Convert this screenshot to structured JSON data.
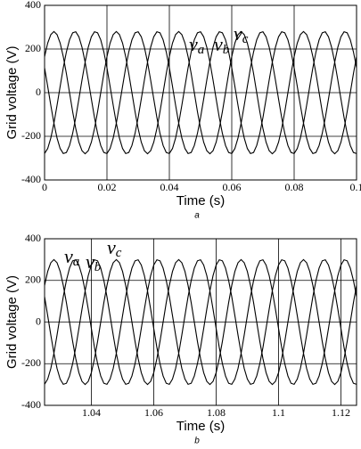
{
  "chart_data": [
    {
      "type": "line",
      "subtitle": "a",
      "x_label": "Time (s)",
      "y_label": "Grid voltage (V)",
      "x": [
        0,
        0.001,
        0.002,
        0.003,
        0.004,
        0.005,
        0.006,
        0.007,
        0.008,
        0.009,
        0.01,
        0.011,
        0.012,
        0.013,
        0.014,
        0.015,
        0.016,
        0.017,
        0.018,
        0.019,
        0.02,
        0.021,
        0.022,
        0.023,
        0.024,
        0.025,
        0.026,
        0.027,
        0.028,
        0.029,
        0.03,
        0.031,
        0.032,
        0.033,
        0.034,
        0.035,
        0.036,
        0.037,
        0.038,
        0.039,
        0.04,
        0.041,
        0.042,
        0.043,
        0.044,
        0.045,
        0.046,
        0.047,
        0.048,
        0.049,
        0.05,
        0.051,
        0.052,
        0.053,
        0.054,
        0.055,
        0.056,
        0.057,
        0.058,
        0.059,
        0.06,
        0.061,
        0.062,
        0.063,
        0.064,
        0.065,
        0.066,
        0.067,
        0.068,
        0.069,
        0.07,
        0.071,
        0.072,
        0.073,
        0.074,
        0.075,
        0.076,
        0.077,
        0.078,
        0.079,
        0.08,
        0.081,
        0.082,
        0.083,
        0.084,
        0.085,
        0.086,
        0.087,
        0.088,
        0.089,
        0.09,
        0.091,
        0.092,
        0.093,
        0.094,
        0.095,
        0.096,
        0.097,
        0.098,
        0.099,
        0.1
      ],
      "series": [
        {
          "name": "va",
          "color": "#000000",
          "values": [
            165,
            227,
            266,
            280,
            266,
            227,
            165,
            87,
            0,
            -87,
            -165,
            -227,
            -266,
            -280,
            -266,
            -227,
            -165,
            -87,
            0,
            87,
            165,
            227,
            266,
            280,
            266,
            227,
            165,
            87,
            0,
            -87,
            -165,
            -227,
            -266,
            -280,
            -266,
            -227,
            -165,
            -87,
            0,
            87,
            165,
            227,
            266,
            280,
            266,
            227,
            165,
            87,
            0,
            -87,
            -165,
            -227,
            -266,
            -280,
            -266,
            -227,
            -165,
            -87,
            0,
            87,
            165,
            227,
            266,
            280,
            266,
            227,
            165,
            87,
            0,
            -87,
            -165,
            -227,
            -266,
            -280,
            -266,
            -227,
            -165,
            -87,
            0,
            87,
            165,
            227,
            266,
            280,
            266,
            227,
            165,
            87,
            0,
            -87,
            -165,
            -227,
            -266,
            -280,
            -266,
            -227,
            -165,
            -87,
            0,
            87,
            165
          ]
        },
        {
          "name": "vb",
          "color": "#000000",
          "values": [
            -279,
            -256,
            -208,
            -140,
            -58,
            29,
            114,
            187,
            242,
            274,
            279,
            256,
            208,
            140,
            58,
            -29,
            -114,
            -187,
            -242,
            -274,
            -279,
            -256,
            -208,
            -140,
            -58,
            29,
            114,
            187,
            242,
            274,
            279,
            256,
            208,
            140,
            58,
            -29,
            -114,
            -187,
            -242,
            -274,
            -279,
            -256,
            -208,
            -140,
            -58,
            29,
            114,
            187,
            242,
            274,
            279,
            256,
            208,
            140,
            58,
            -29,
            -114,
            -187,
            -242,
            -274,
            -279,
            -256,
            -208,
            -140,
            -58,
            29,
            114,
            187,
            242,
            274,
            279,
            256,
            208,
            140,
            58,
            -29,
            -114,
            -187,
            -242,
            -274,
            -279,
            -256,
            -208,
            -140,
            -58,
            29,
            114,
            187,
            242,
            274,
            279,
            256,
            208,
            140,
            58,
            -29,
            -114,
            -187,
            -242,
            -274,
            -279
          ]
        },
        {
          "name": "vc",
          "color": "#000000",
          "values": [
            114,
            29,
            -58,
            -140,
            -208,
            -256,
            -279,
            -274,
            -242,
            -187,
            -114,
            -29,
            58,
            140,
            208,
            256,
            279,
            274,
            242,
            187,
            114,
            29,
            -58,
            -140,
            -208,
            -256,
            -279,
            -274,
            -242,
            -187,
            -114,
            -29,
            58,
            140,
            208,
            256,
            279,
            274,
            242,
            187,
            114,
            29,
            -58,
            -140,
            -208,
            -256,
            -279,
            -274,
            -242,
            -187,
            -114,
            -29,
            58,
            140,
            208,
            256,
            279,
            274,
            242,
            187,
            114,
            29,
            -58,
            -140,
            -208,
            -256,
            -279,
            -274,
            -242,
            -187,
            -114,
            -29,
            58,
            140,
            208,
            256,
            279,
            274,
            242,
            187,
            114,
            29,
            -58,
            -140,
            -208,
            -256,
            -279,
            -274,
            -242,
            -187,
            -114,
            -29,
            58,
            140,
            208,
            256,
            279,
            274,
            242,
            187,
            114
          ]
        }
      ],
      "xlim": [
        0,
        0.1
      ],
      "xticks": [
        0,
        0.02,
        0.04,
        0.06,
        0.08,
        0.1
      ],
      "ylim": [
        -400,
        400
      ],
      "yticks": [
        -400,
        -200,
        0,
        200,
        400
      ],
      "grid": true
    },
    {
      "type": "line",
      "subtitle": "b",
      "x_label": "Time (s)",
      "y_label": "Grid voltage (V)",
      "x": [
        1.025,
        1.026,
        1.027,
        1.028,
        1.029,
        1.03,
        1.031,
        1.032,
        1.033,
        1.034,
        1.035,
        1.036,
        1.037,
        1.038,
        1.039,
        1.04,
        1.041,
        1.042,
        1.043,
        1.044,
        1.045,
        1.046,
        1.047,
        1.048,
        1.049,
        1.05,
        1.051,
        1.052,
        1.053,
        1.054,
        1.055,
        1.056,
        1.057,
        1.058,
        1.059,
        1.06,
        1.061,
        1.062,
        1.063,
        1.064,
        1.065,
        1.066,
        1.067,
        1.068,
        1.069,
        1.07,
        1.071,
        1.072,
        1.073,
        1.074,
        1.075,
        1.076,
        1.077,
        1.078,
        1.079,
        1.08,
        1.081,
        1.082,
        1.083,
        1.084,
        1.085,
        1.086,
        1.087,
        1.088,
        1.089,
        1.09,
        1.091,
        1.092,
        1.093,
        1.094,
        1.095,
        1.096,
        1.097,
        1.098,
        1.099,
        1.1,
        1.101,
        1.102,
        1.103,
        1.104,
        1.105,
        1.106,
        1.107,
        1.108,
        1.109,
        1.11,
        1.111,
        1.112,
        1.113,
        1.114,
        1.115,
        1.116,
        1.117,
        1.118,
        1.119,
        1.12,
        1.121,
        1.122,
        1.123,
        1.124,
        1.125
      ],
      "series": [
        {
          "name": "va",
          "color": "#000000",
          "values": [
            176,
            243,
            285,
            300,
            285,
            243,
            176,
            93,
            0,
            -93,
            -176,
            -243,
            -285,
            -300,
            -285,
            -243,
            -176,
            -93,
            0,
            93,
            176,
            243,
            285,
            300,
            285,
            243,
            176,
            93,
            0,
            -93,
            -176,
            -243,
            -285,
            -300,
            -285,
            -243,
            -176,
            -93,
            0,
            93,
            176,
            243,
            285,
            300,
            285,
            243,
            176,
            93,
            0,
            -93,
            -176,
            -243,
            -285,
            -300,
            -285,
            -243,
            -176,
            -93,
            0,
            93,
            176,
            243,
            285,
            300,
            285,
            243,
            176,
            93,
            0,
            -93,
            -176,
            -243,
            -285,
            -300,
            -285,
            -243,
            -176,
            -93,
            0,
            93,
            176,
            243,
            285,
            300,
            285,
            243,
            176,
            93,
            0,
            -93,
            -176,
            -243,
            -285,
            -300,
            -285,
            -243,
            -176,
            -93,
            0,
            93,
            176
          ]
        },
        {
          "name": "vb",
          "color": "#000000",
          "values": [
            -299,
            -274,
            -223,
            -150,
            -62,
            31,
            122,
            200,
            259,
            294,
            299,
            274,
            223,
            150,
            62,
            -31,
            -122,
            -200,
            -259,
            -294,
            -299,
            -274,
            -223,
            -150,
            -62,
            31,
            122,
            200,
            259,
            294,
            299,
            274,
            223,
            150,
            62,
            -31,
            -122,
            -200,
            -259,
            -294,
            -299,
            -274,
            -223,
            -150,
            -62,
            31,
            122,
            200,
            259,
            294,
            299,
            274,
            223,
            150,
            62,
            -31,
            -122,
            -200,
            -259,
            -294,
            -299,
            -274,
            -223,
            -150,
            -62,
            31,
            122,
            200,
            259,
            294,
            299,
            274,
            223,
            150,
            62,
            -31,
            -122,
            -200,
            -259,
            -294,
            -299,
            -274,
            -223,
            -150,
            -62,
            31,
            122,
            200,
            259,
            294,
            299,
            274,
            223,
            150,
            62,
            -31,
            -122,
            -200,
            -259,
            -294,
            -299
          ]
        },
        {
          "name": "vc",
          "color": "#000000",
          "values": [
            122,
            31,
            -62,
            -150,
            -223,
            -274,
            -299,
            -294,
            -259,
            -200,
            -122,
            -31,
            62,
            150,
            223,
            274,
            299,
            294,
            259,
            200,
            122,
            31,
            -62,
            -150,
            -223,
            -274,
            -299,
            -294,
            -259,
            -200,
            -122,
            -31,
            62,
            150,
            223,
            274,
            299,
            294,
            259,
            200,
            122,
            31,
            -62,
            -150,
            -223,
            -274,
            -299,
            -294,
            -259,
            -200,
            -122,
            -31,
            62,
            150,
            223,
            274,
            299,
            294,
            259,
            200,
            122,
            31,
            -62,
            -150,
            -223,
            -274,
            -299,
            -294,
            -259,
            -200,
            -122,
            -31,
            62,
            150,
            223,
            274,
            299,
            294,
            259,
            200,
            122,
            31,
            -62,
            -150,
            -223,
            -274,
            -299,
            -294,
            -259,
            -200,
            -122,
            -31,
            62,
            150,
            223,
            274,
            299,
            294,
            259,
            200,
            122
          ]
        }
      ],
      "xlim": [
        1.025,
        1.125
      ],
      "xticks": [
        1.04,
        1.06,
        1.08,
        1.1,
        1.12
      ],
      "ylim": [
        -400,
        400
      ],
      "yticks": [
        -400,
        -200,
        0,
        200,
        400
      ],
      "grid": true
    }
  ]
}
